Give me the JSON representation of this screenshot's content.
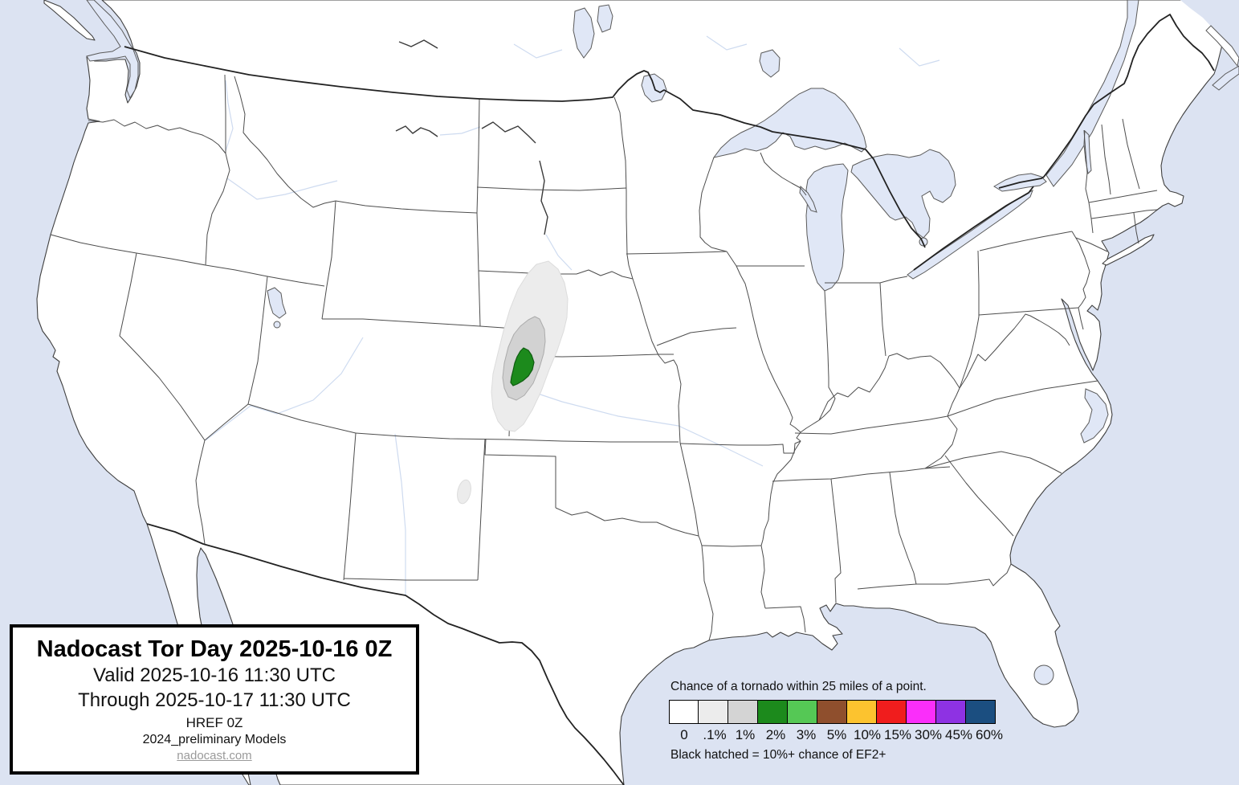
{
  "title_box": {
    "title": "Nadocast Tor Day 2025-10-16 0Z",
    "valid": "Valid 2025-10-16 11:30 UTC",
    "through": "Through 2025-10-17 11:30 UTC",
    "model": "HREF 0Z",
    "models2": "2024_preliminary Models",
    "site": "nadocast.com"
  },
  "legend": {
    "heading": "Chance of a tornado within 25 miles of a point.",
    "note": "Black hatched = 10%+ chance of EF2+",
    "bins": [
      {
        "label": "0",
        "color": "#ffffff"
      },
      {
        "label": ".1%",
        "color": "#ececec"
      },
      {
        "label": "1%",
        "color": "#d4d4d4"
      },
      {
        "label": "2%",
        "color": "#1c8a1c"
      },
      {
        "label": "3%",
        "color": "#55c855"
      },
      {
        "label": "5%",
        "color": "#8f4f2d"
      },
      {
        "label": "10%",
        "color": "#fcc32f"
      },
      {
        "label": "15%",
        "color": "#f01d1d"
      },
      {
        "label": "30%",
        "color": "#fa2efa"
      },
      {
        "label": "45%",
        "color": "#8e32e3"
      },
      {
        "label": "60%",
        "color": "#1b4e80"
      }
    ]
  },
  "map": {
    "colors": {
      "ocean": "#dce3f2",
      "lake": "#e0e7f6",
      "land": "#ffffff",
      "state_border": "#4d4d4d",
      "coast": "#3f3f3f",
      "national_border": "#222222"
    },
    "contours": [
      {
        "level": ".1%",
        "color": "#ececec",
        "edge": "#dcdcdc"
      },
      {
        "level": "1%",
        "color": "#d2d2d2",
        "edge": "#ababab"
      },
      {
        "level": "2%",
        "color": "#1c8a1c",
        "edge": "#0e5c10"
      }
    ],
    "forecast_area": "Colorado / Nebraska / Kansas tri-border"
  }
}
